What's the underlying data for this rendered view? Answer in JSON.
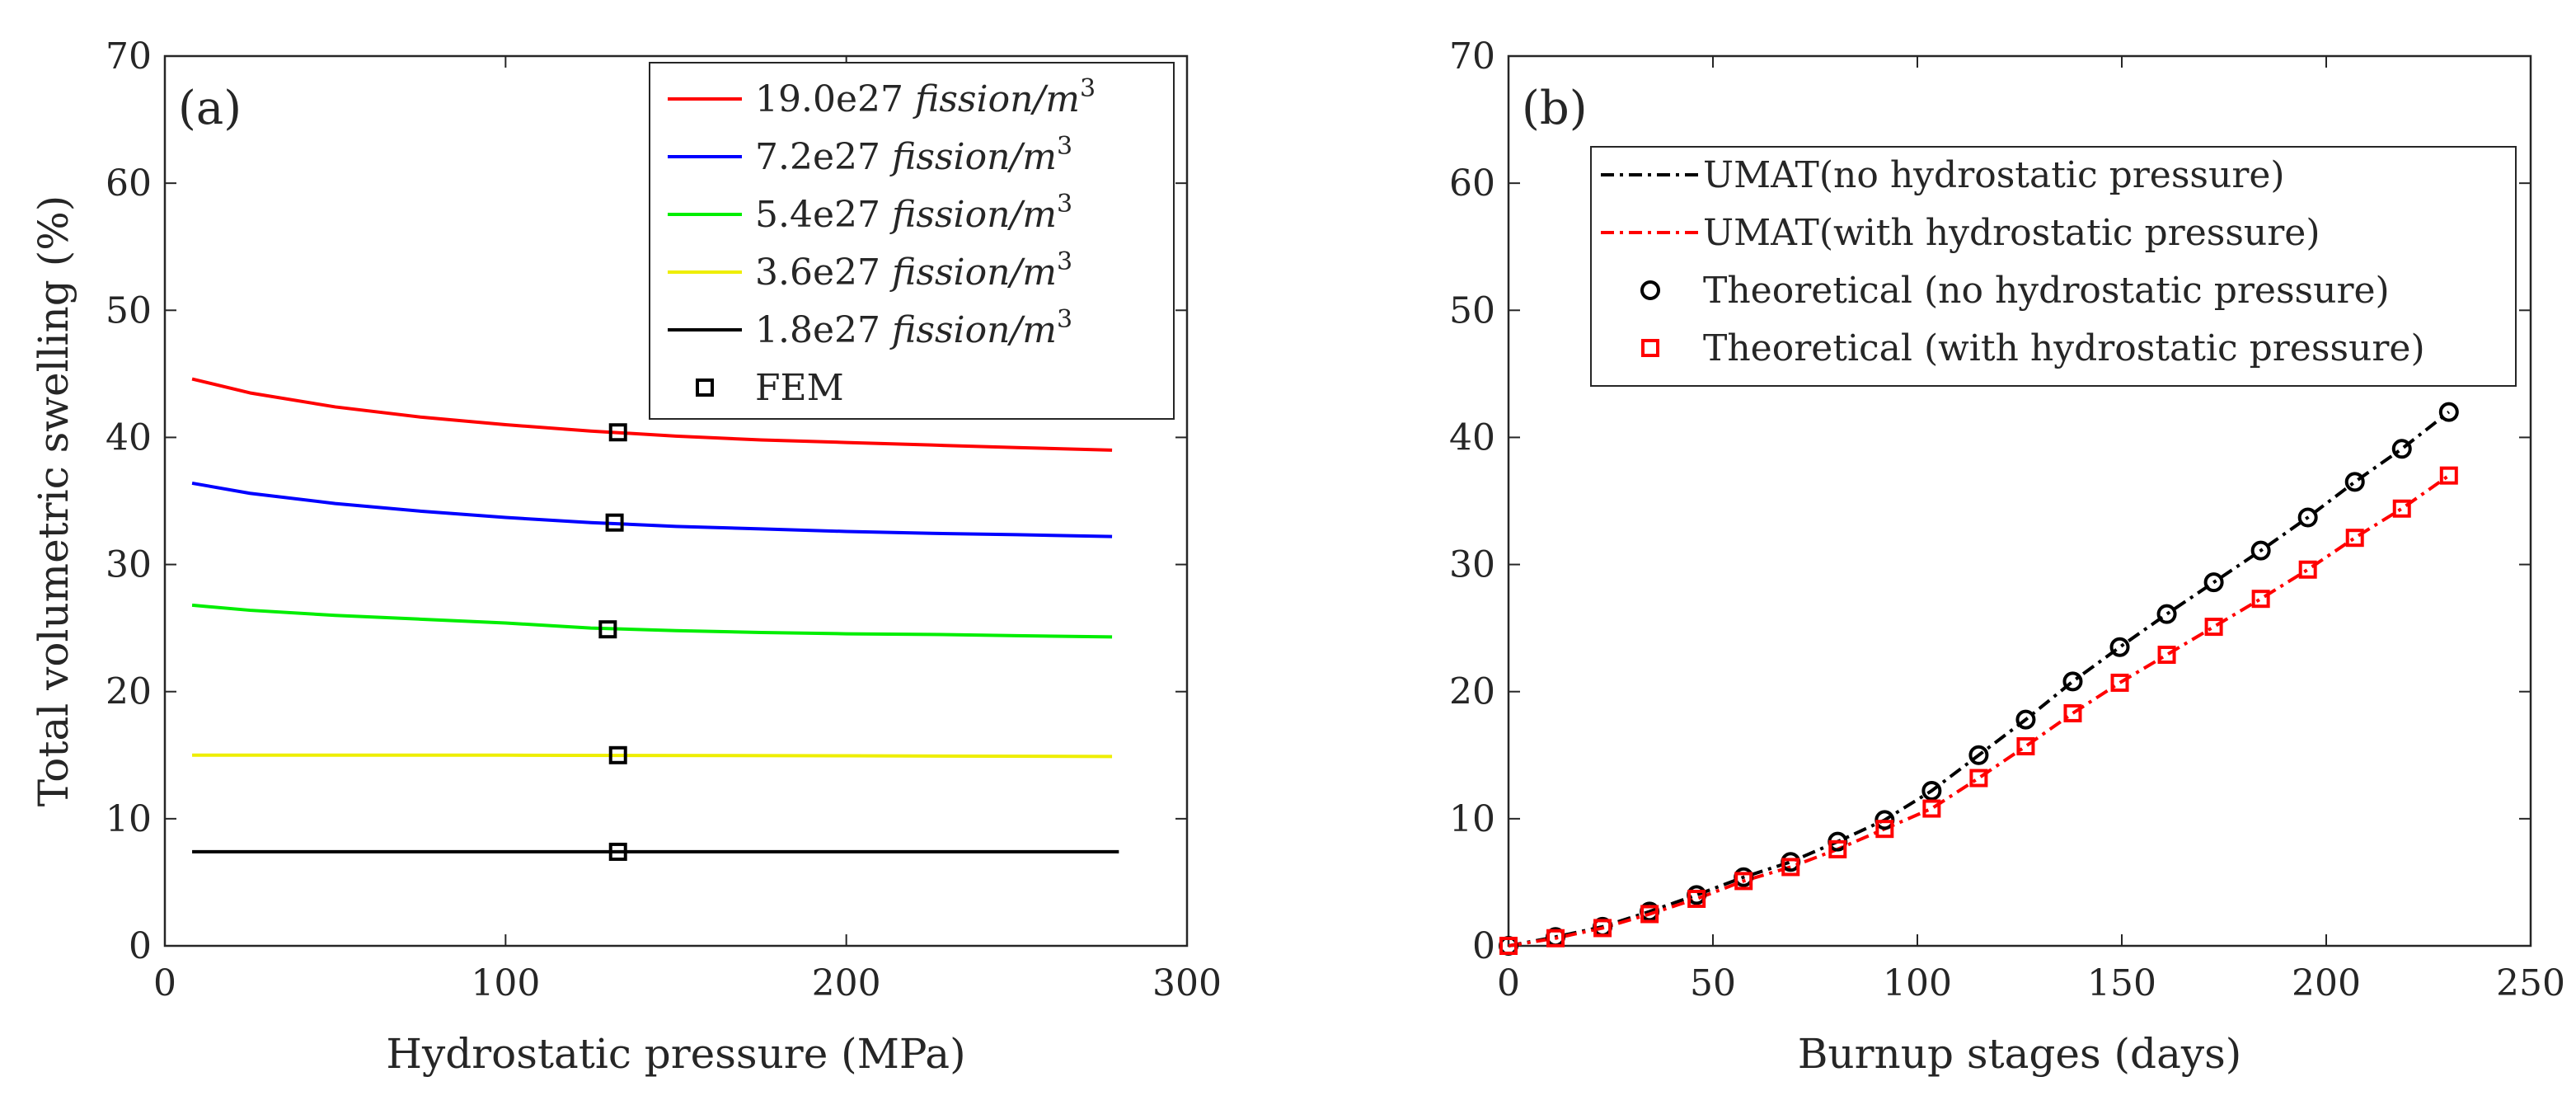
{
  "chart_data": [
    {
      "type": "line",
      "panel_label": "(a)",
      "xlabel": "Hydrostatic pressure (MPa)",
      "ylabel": "Total volumetric swelling (%)",
      "xlim": [
        0,
        300
      ],
      "ylim": [
        0,
        70
      ],
      "xticks": [
        0,
        100,
        200,
        300
      ],
      "yticks": [
        0,
        10,
        20,
        30,
        40,
        50,
        60,
        70
      ],
      "grid": false,
      "legend_position": "top-right",
      "series": [
        {
          "name": "19.0e27",
          "unit": "fission/m",
          "unit_exp": "3",
          "color": "#ff0000",
          "x": [
            8,
            25,
            50,
            75,
            100,
            125,
            150,
            175,
            200,
            225,
            250,
            278
          ],
          "y": [
            44.6,
            43.5,
            42.4,
            41.6,
            41.0,
            40.5,
            40.1,
            39.8,
            39.6,
            39.4,
            39.2,
            39.0
          ]
        },
        {
          "name": "7.2e27",
          "unit": "fission/m",
          "unit_exp": "3",
          "color": "#0000ff",
          "x": [
            8,
            25,
            50,
            75,
            100,
            125,
            150,
            175,
            200,
            225,
            250,
            278
          ],
          "y": [
            36.4,
            35.6,
            34.8,
            34.2,
            33.7,
            33.3,
            33.0,
            32.8,
            32.6,
            32.45,
            32.35,
            32.2
          ]
        },
        {
          "name": "5.4e27",
          "unit": "fission/m",
          "unit_exp": "3",
          "color": "#00ee00",
          "x": [
            8,
            25,
            50,
            75,
            100,
            125,
            150,
            175,
            200,
            225,
            250,
            278
          ],
          "y": [
            26.8,
            26.4,
            26.0,
            25.7,
            25.4,
            25.0,
            24.8,
            24.65,
            24.55,
            24.5,
            24.4,
            24.3
          ]
        },
        {
          "name": "3.6e27",
          "unit": "fission/m",
          "unit_exp": "3",
          "color": "#eeee00",
          "x": [
            8,
            100,
            200,
            278
          ],
          "y": [
            15.0,
            15.0,
            14.95,
            14.9
          ]
        },
        {
          "name": "1.8e27",
          "unit": "fission/m",
          "unit_exp": "3",
          "color": "#000000",
          "x": [
            8,
            100,
            200,
            280
          ],
          "y": [
            7.4,
            7.4,
            7.4,
            7.4
          ]
        }
      ],
      "markers": {
        "name": "FEM",
        "shape": "square",
        "color": "#000000",
        "x": [
          133,
          132,
          130,
          133,
          133
        ],
        "y": [
          40.4,
          33.3,
          24.9,
          15.0,
          7.4
        ]
      }
    },
    {
      "type": "line",
      "panel_label": "(b)",
      "xlabel": "Burnup stages (days)",
      "ylabel": "",
      "xlim": [
        0,
        250
      ],
      "ylim": [
        0,
        70
      ],
      "xticks": [
        0,
        50,
        100,
        150,
        200,
        250
      ],
      "yticks": [
        0,
        10,
        20,
        30,
        40,
        50,
        60,
        70
      ],
      "grid": false,
      "legend_position": "top-right",
      "x": [
        0,
        11.5,
        23,
        34.5,
        46,
        57.5,
        69,
        80.5,
        92,
        103.5,
        115,
        126.5,
        138,
        149.5,
        161,
        172.5,
        184,
        195.5,
        207,
        218.5,
        230
      ],
      "series": [
        {
          "name": "UMAT(no hydrostatic pressure)",
          "style": "dashdot",
          "color": "#000000",
          "y": [
            0,
            0.7,
            1.5,
            2.7,
            4.0,
            5.4,
            6.6,
            8.2,
            9.9,
            12.2,
            15.0,
            17.8,
            20.8,
            23.5,
            26.1,
            28.6,
            31.1,
            33.7,
            36.5,
            39.1,
            42.0
          ]
        },
        {
          "name": "UMAT(with hydrostatic pressure)",
          "style": "dashdot",
          "color": "#ff0000",
          "y": [
            0,
            0.6,
            1.4,
            2.5,
            3.7,
            5.1,
            6.2,
            7.6,
            9.2,
            10.8,
            13.2,
            15.7,
            18.3,
            20.7,
            22.9,
            25.1,
            27.3,
            29.6,
            32.1,
            34.4,
            37.0
          ]
        },
        {
          "name": "Theoretical (no hydrostatic pressure)",
          "style": "marker",
          "marker": "circle",
          "color": "#000000",
          "y": [
            0,
            0.7,
            1.5,
            2.7,
            4.0,
            5.4,
            6.6,
            8.2,
            9.9,
            12.2,
            15.0,
            17.8,
            20.8,
            23.5,
            26.1,
            28.6,
            31.1,
            33.7,
            36.5,
            39.1,
            42.0
          ]
        },
        {
          "name": "Theoretical (with hydrostatic pressure)",
          "style": "marker",
          "marker": "square",
          "color": "#ff0000",
          "y": [
            0,
            0.6,
            1.4,
            2.5,
            3.7,
            5.1,
            6.2,
            7.6,
            9.2,
            10.8,
            13.2,
            15.7,
            18.3,
            20.7,
            22.9,
            25.1,
            27.3,
            29.6,
            32.1,
            34.4,
            37.0
          ]
        }
      ]
    }
  ]
}
